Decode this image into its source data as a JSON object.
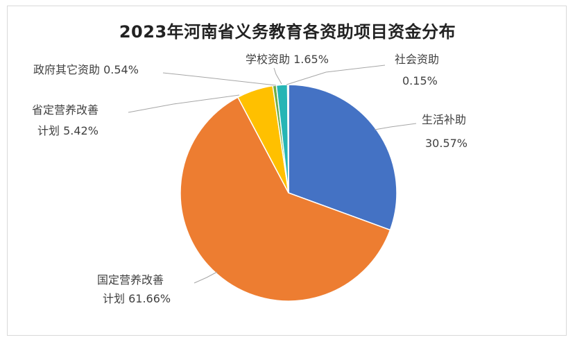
{
  "chart_data": {
    "type": "pie",
    "title": "2023年河南省义务教育各资助项目资金分布",
    "slices": [
      {
        "name": "生活补助",
        "value": 30.57,
        "label": "30.57%",
        "color": "#4472C4"
      },
      {
        "name": "国定营养改善计划",
        "value": 61.66,
        "label": "61.66%",
        "color": "#ED7D31"
      },
      {
        "name": "省定营养改善计划",
        "value": 5.42,
        "label": "5.42%",
        "color": "#FFC000"
      },
      {
        "name": "政府其它资助",
        "value": 0.54,
        "label": "0.54%",
        "color": "#70AD47"
      },
      {
        "name": "学校资助",
        "value": 1.65,
        "label": "1.65%",
        "color": "#26B5B5"
      },
      {
        "name": "社会资助",
        "value": 0.15,
        "label": "0.15%",
        "color": "#9E480E"
      }
    ],
    "label_text": {
      "shenghuo_name": "生活补助",
      "guoding_line1": "国定营养改善",
      "guoding_line2": "计划 61.66%",
      "shengding_line1": "省定营养改善",
      "shengding_line2": "计划 5.42%",
      "zhengfu": "政府其它资助 0.54%",
      "xuexiao": "学校资助 1.65%",
      "shehui_name": "社会资助"
    },
    "legend": "none",
    "grid": false
  }
}
